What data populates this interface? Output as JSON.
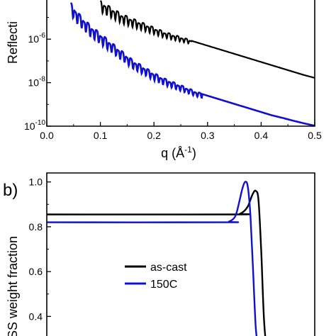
{
  "chart_data": [
    {
      "type": "line",
      "panel_label": "",
      "xlabel": "q (Å",
      "xlabel_sup": "-1",
      "xlabel_close": ")",
      "ylabel": "Reflecti",
      "xlim": [
        0.0,
        0.5
      ],
      "ylim_log10": [
        -10,
        -4.2
      ],
      "y_scale": "log",
      "x_ticks": [
        "0.0",
        "0.1",
        "0.2",
        "0.3",
        "0.4",
        "0.5"
      ],
      "y_ticks": [
        {
          "base": "10",
          "exp": "-6",
          "value": -6
        },
        {
          "base": "10",
          "exp": "-8",
          "value": -8
        },
        {
          "base": "10",
          "exp": "-10",
          "value": -10
        }
      ],
      "series": [
        {
          "color": "#000000",
          "x": [
            0.1,
            0.12,
            0.14,
            0.16,
            0.18,
            0.2,
            0.22,
            0.24,
            0.26,
            0.28,
            0.3,
            0.32,
            0.34,
            0.36,
            0.38,
            0.4,
            0.42,
            0.44,
            0.46,
            0.48,
            0.5
          ],
          "y_log10": [
            -4.3,
            -4.6,
            -4.9,
            -5.1,
            -5.3,
            -5.5,
            -5.7,
            -5.85,
            -6.0,
            -6.15,
            -6.3,
            -6.45,
            -6.6,
            -6.75,
            -6.9,
            -7.05,
            -7.2,
            -7.35,
            -7.5,
            -7.65,
            -7.78
          ],
          "osc_amp": 0.45,
          "osc_period": 0.016,
          "osc_range": [
            0.1,
            0.27
          ]
        },
        {
          "color": "#1010d0",
          "x": [
            0.045,
            0.06,
            0.08,
            0.1,
            0.12,
            0.14,
            0.16,
            0.18,
            0.2,
            0.22,
            0.24,
            0.26,
            0.28,
            0.3,
            0.32,
            0.34,
            0.36,
            0.38,
            0.4,
            0.42,
            0.44,
            0.46,
            0.48,
            0.5
          ],
          "y_log10": [
            -4.4,
            -4.9,
            -5.4,
            -5.8,
            -6.2,
            -6.6,
            -7.0,
            -7.3,
            -7.6,
            -7.85,
            -8.05,
            -8.25,
            -8.45,
            -8.6,
            -8.75,
            -8.9,
            -9.05,
            -9.2,
            -9.35,
            -9.5,
            -9.62,
            -9.75,
            -9.87,
            -9.98
          ],
          "osc_amp": 0.5,
          "osc_period": 0.016,
          "osc_range": [
            0.045,
            0.29
          ]
        }
      ]
    },
    {
      "type": "line",
      "panel_label": "b)",
      "ylabel": "SS weight fraction",
      "xlim": [
        0.0,
        1.0
      ],
      "ylim": [
        0.3,
        1.04
      ],
      "y_ticks": [
        "1.0",
        "0.8",
        "0.6",
        "0.4"
      ],
      "y_tick_values": [
        1.0,
        0.8,
        0.6,
        0.4
      ],
      "legend_position": "center",
      "series": [
        {
          "name": "as-cast",
          "color": "#000000",
          "x": [
            0.0,
            0.7,
            0.72,
            0.735,
            0.75,
            0.76,
            0.77,
            0.78,
            0.79,
            0.8,
            0.81,
            0.82
          ],
          "y": [
            0.855,
            0.855,
            0.858,
            0.868,
            0.89,
            0.92,
            0.95,
            0.96,
            0.92,
            0.7,
            0.4,
            0.25
          ]
        },
        {
          "name": "150C",
          "color": "#1010d0",
          "x": [
            0.0,
            0.66,
            0.68,
            0.7,
            0.71,
            0.72,
            0.73,
            0.74,
            0.75,
            0.76,
            0.77,
            0.78,
            0.79
          ],
          "y": [
            0.82,
            0.82,
            0.823,
            0.84,
            0.87,
            0.92,
            0.97,
            1.0,
            0.98,
            0.85,
            0.6,
            0.35,
            0.25
          ]
        }
      ]
    }
  ]
}
